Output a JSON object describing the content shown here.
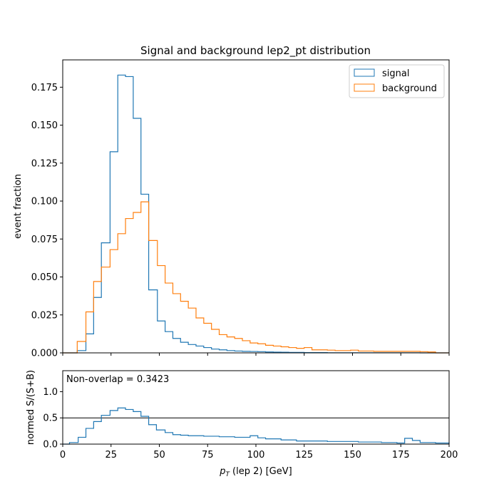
{
  "chart_data": [
    {
      "type": "histogram",
      "title": "Signal and background lep2_pt distribution",
      "xlabel": "",
      "ylabel": "event fraction",
      "xlim": [
        0,
        200
      ],
      "ylim": [
        0,
        0.193
      ],
      "yticks": [
        "0.000",
        "0.025",
        "0.050",
        "0.075",
        "0.100",
        "0.125",
        "0.150",
        "0.175"
      ],
      "legend_position": "top-right",
      "bin_edges": [
        0,
        5,
        7.5,
        12,
        16,
        20,
        24.5,
        28.5,
        32.5,
        36.5,
        40.5,
        44.5,
        49,
        53,
        57,
        61,
        65,
        69,
        73,
        77,
        81,
        85,
        89,
        93,
        97,
        101,
        105,
        109,
        113,
        117,
        121,
        125,
        129,
        133,
        137,
        141,
        145,
        149,
        153,
        157,
        161,
        165,
        169,
        173,
        177,
        181,
        185,
        189,
        193,
        200
      ],
      "series": [
        {
          "name": "signal",
          "color": "#1f77b4",
          "values": [
            0,
            0,
            0.0015,
            0.0125,
            0.0365,
            0.0725,
            0.1325,
            0.183,
            0.182,
            0.1545,
            0.1045,
            0.0415,
            0.021,
            0.014,
            0.0095,
            0.007,
            0.0055,
            0.0045,
            0.0035,
            0.0025,
            0.002,
            0.0015,
            0.0012,
            0.001,
            0.0009,
            0.0008,
            0.0006,
            0.0005,
            0.0004,
            0.0003,
            0.0003,
            0.0002,
            0.0002,
            0.0002,
            0.0001,
            0.0001,
            0.0001,
            0.0001,
            0.0001,
            0.0001,
            0.0001,
            0.0001,
            0.0001,
            0.0001,
            0.0001,
            0.0001,
            0,
            0,
            0
          ]
        },
        {
          "name": "background",
          "color": "#ff7f0e",
          "values": [
            0,
            0,
            0.0075,
            0.027,
            0.047,
            0.0565,
            0.068,
            0.0785,
            0.0885,
            0.0925,
            0.0995,
            0.074,
            0.0575,
            0.046,
            0.039,
            0.034,
            0.0295,
            0.023,
            0.0195,
            0.0155,
            0.012,
            0.0105,
            0.0095,
            0.008,
            0.0065,
            0.006,
            0.005,
            0.0045,
            0.004,
            0.0035,
            0.003,
            0.0035,
            0.002,
            0.002,
            0.0018,
            0.0015,
            0.0015,
            0.0018,
            0.0012,
            0.0012,
            0.001,
            0.001,
            0.001,
            0.001,
            0.001,
            0.001,
            0.0008,
            0.0006,
            0
          ]
        }
      ]
    },
    {
      "type": "histogram",
      "title": "",
      "xlabel": "(lep 2) [GeV]",
      "xlabel_symbol": "p",
      "xlabel_subscript": "T",
      "ylabel": "normed S/(S+B)",
      "xlim": [
        0,
        200
      ],
      "ylim": [
        0,
        1.4
      ],
      "xticks": [
        "0",
        "25",
        "50",
        "75",
        "100",
        "125",
        "150",
        "175",
        "200"
      ],
      "yticks": [
        "0.0",
        "0.5",
        "1.0"
      ],
      "reference_line": 0.5,
      "annotation": "Non-overlap = 0.3423",
      "series": [
        {
          "name": "normed S/(S+B)",
          "color": "#1f77b4",
          "bin_edges": [
            0,
            3.5,
            8,
            12,
            16,
            20,
            24.5,
            28.5,
            32.5,
            36.5,
            40.5,
            44.5,
            48.5,
            53,
            57,
            61,
            65,
            73,
            81,
            89,
            97,
            101,
            105,
            113,
            121,
            129,
            137,
            145,
            153,
            157,
            165,
            169,
            173,
            177,
            181,
            185,
            193,
            200
          ],
          "values": [
            0,
            0.03,
            0.13,
            0.3,
            0.43,
            0.55,
            0.64,
            0.69,
            0.66,
            0.62,
            0.53,
            0.37,
            0.27,
            0.22,
            0.18,
            0.17,
            0.16,
            0.15,
            0.14,
            0.13,
            0.16,
            0.12,
            0.1,
            0.08,
            0.06,
            0.06,
            0.05,
            0.05,
            0.04,
            0.04,
            0.03,
            0.03,
            0.02,
            0.11,
            0.07,
            0.03,
            0.02
          ]
        }
      ]
    }
  ]
}
